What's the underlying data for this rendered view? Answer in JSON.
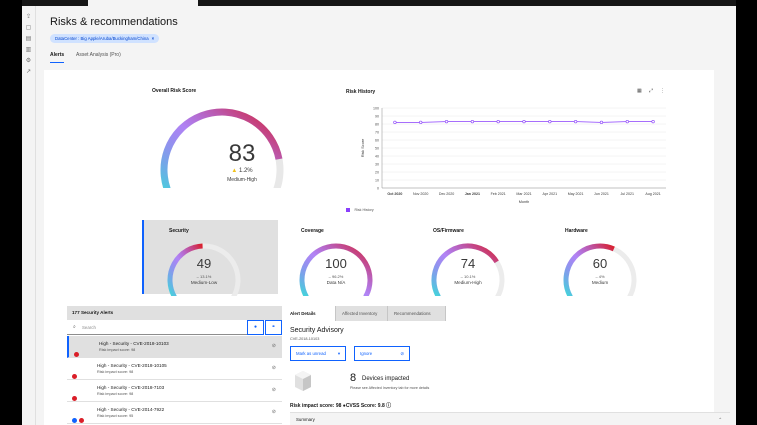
{
  "page": {
    "title": "Risks & recommendations",
    "filter_chip": "DataCenter : Big Apple/Aruba/Buckingham/China",
    "tabs": [
      "Alerts",
      "Asset Analysis (Pro)"
    ]
  },
  "overall": {
    "title": "Overall Risk Score",
    "value": "83",
    "trend": "1.2%",
    "level": "Medium-High",
    "fraction": 0.83
  },
  "risk_history": {
    "title": "Risk History",
    "ylabel": "Risk Score",
    "xlabel": "Month",
    "legend": "Risk History",
    "yticks": [
      "0",
      "10",
      "20",
      "30",
      "40",
      "50",
      "60",
      "70",
      "80",
      "90",
      "100"
    ],
    "xticks": [
      "Oct 2020",
      "Nov 2020",
      "Dec 2020",
      "Jan 2021",
      "Feb 2021",
      "Mar 2021",
      "Apr 2021",
      "May 2021",
      "Jun 2021",
      "Jul 2021",
      "Aug 2021"
    ],
    "bold_ticks": [
      0,
      3
    ],
    "values": [
      82,
      82,
      83,
      83,
      83,
      83,
      83,
      83,
      82,
      83,
      83
    ],
    "ymax": 100
  },
  "subscores": [
    {
      "title": "Security",
      "value": "49",
      "trend": "13.1%",
      "level": "Medium-Low",
      "fraction": 0.49
    },
    {
      "title": "Coverage",
      "value": "100",
      "trend": "96.2%",
      "level": "Data N/A",
      "fraction": 1.0
    },
    {
      "title": "OS/Firmware",
      "value": "74",
      "trend": "10.1%",
      "level": "Medium-High",
      "fraction": 0.74
    },
    {
      "title": "Hardware",
      "value": "60",
      "trend": "4%",
      "level": "Medium",
      "fraction": 0.6
    }
  ],
  "alerts": {
    "header": "177 Security Alerts",
    "search_placeholder": "Search",
    "items": [
      {
        "title": "High - Security - CVE-2018-10103",
        "sub": "Risk impact score: 98",
        "dots": [
          "#da1e28"
        ]
      },
      {
        "title": "High - Security - CVE-2018-10105",
        "sub": "Risk impact score: 98",
        "dots": [
          "#da1e28"
        ]
      },
      {
        "title": "High - Security - CVE-2018-7103",
        "sub": "Risk impact score: 98",
        "dots": [
          "#da1e28"
        ]
      },
      {
        "title": "High - Security - CVE-2014-7922",
        "sub": "Risk impact score: 95",
        "dots": [
          "#0f62fe",
          "#da1e28"
        ]
      }
    ]
  },
  "detail": {
    "tabs": [
      "Alert Details",
      "Affected Inventory",
      "Recommendations"
    ],
    "title": "Security Advisory",
    "cve": "CVE-2018-10103",
    "mark_button": "Mark as unread",
    "ignore_button": "Ignore",
    "devices_count": "8",
    "devices_label": "Devices impacted",
    "devices_sub": "Please see Affected Inventory tab for more details",
    "score_line": "Risk impact score: 98   ●CVSS Score: 9.8",
    "summary": "Summary"
  }
}
